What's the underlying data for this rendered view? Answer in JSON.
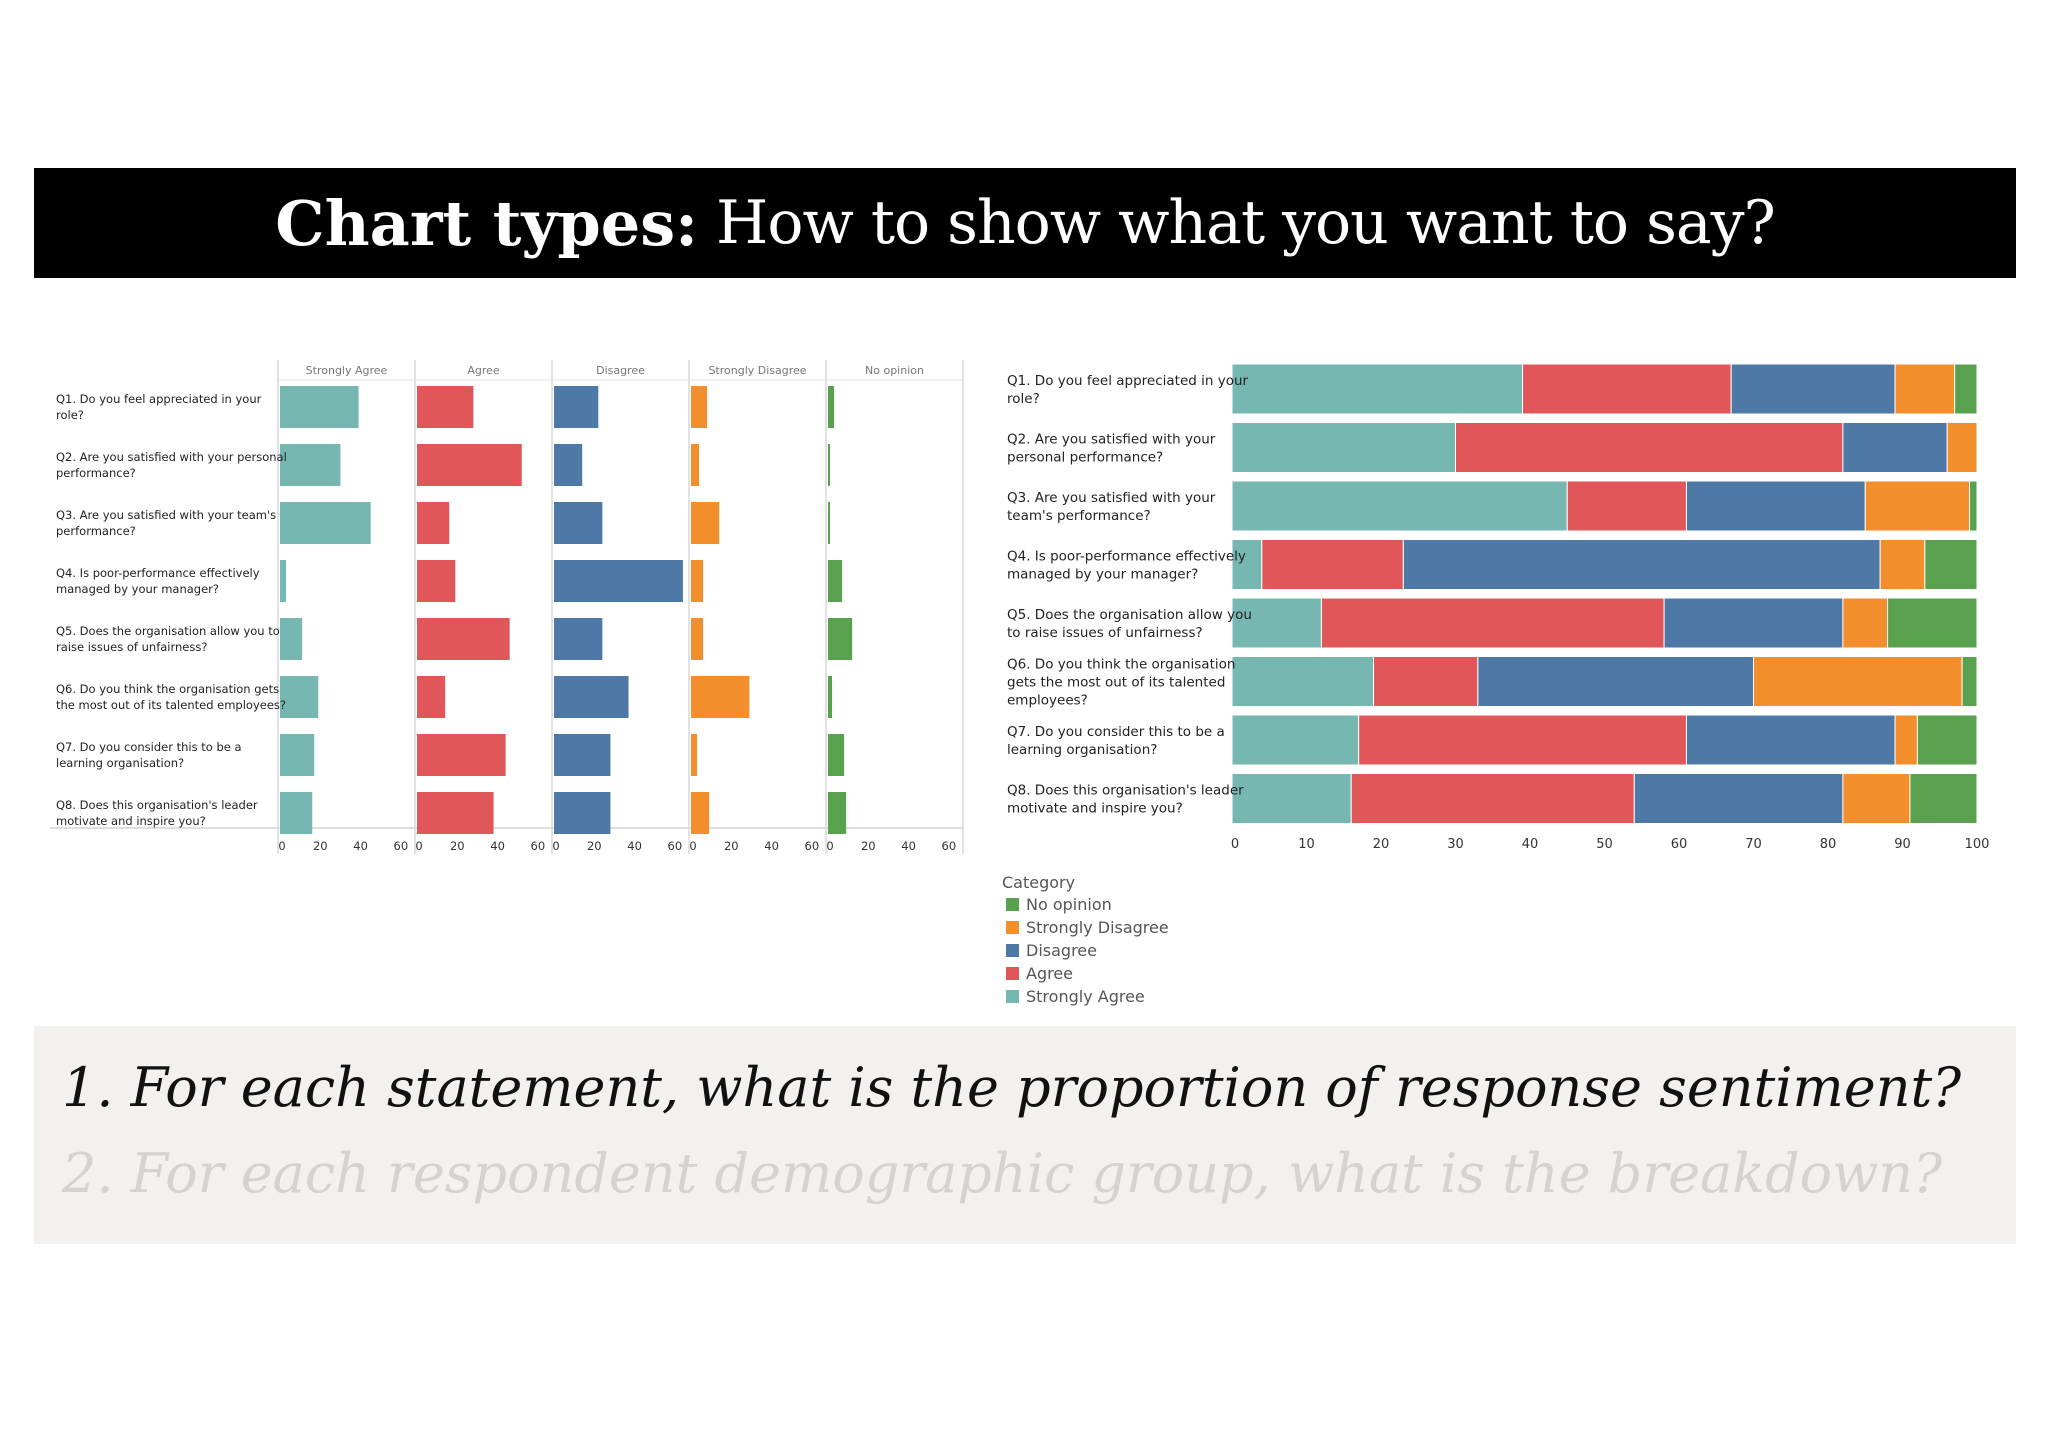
{
  "title": {
    "bold": "Chart types:",
    "regular": "How to show what you want to say?"
  },
  "colors": {
    "Strongly Agree": "#76b7b2",
    "Agree": "#e15759",
    "Disagree": "#4e79a7",
    "Strongly Disagree": "#f28e2b",
    "No opinion": "#59a14f"
  },
  "chart_data": [
    {
      "type": "bar",
      "orientation": "horizontal",
      "layout": "small-multiples",
      "categories": [
        "Q1. Do you feel appreciated in your role?",
        "Q2. Are you satisfied with your personal performance?",
        "Q3. Are you satisfied with your team's performance?",
        "Q4. Is poor-performance effectively managed by your manager?",
        "Q5. Does the organisation allow you to raise issues of unfairness?",
        "Q6. Do you think the organisation gets the most out of its talented employees?",
        "Q7. Do you consider this to be a learning organisation?",
        "Q8. Does this organisation's leader motivate and inspire you?"
      ],
      "series": [
        {
          "name": "Strongly Agree",
          "values": [
            39,
            30,
            45,
            3,
            11,
            19,
            17,
            16
          ]
        },
        {
          "name": "Agree",
          "values": [
            28,
            52,
            16,
            19,
            46,
            14,
            44,
            38
          ]
        },
        {
          "name": "Disagree",
          "values": [
            22,
            14,
            24,
            64,
            24,
            37,
            28,
            28
          ]
        },
        {
          "name": "Strongly Disagree",
          "values": [
            8,
            4,
            14,
            6,
            6,
            29,
            3,
            9
          ]
        },
        {
          "name": "No opinion",
          "values": [
            3,
            1,
            1,
            7,
            12,
            2,
            8,
            9
          ]
        }
      ],
      "xlim": [
        0,
        68
      ],
      "xticks": [
        0,
        20,
        40,
        60
      ],
      "grid": false
    },
    {
      "type": "bar",
      "orientation": "horizontal",
      "stacked": true,
      "categories": [
        "Q1. Do you feel appreciated in your role?",
        "Q2. Are you satisfied with your personal performance?",
        "Q3. Are you satisfied with your team's performance?",
        "Q4. Is poor-performance effectively managed by your manager?",
        "Q5. Does the organisation allow you to raise issues of unfairness?",
        "Q6. Do you think the organisation gets the most out of its talented employees?",
        "Q7. Do you consider this to be a learning organisation?",
        "Q8. Does this organisation's leader motivate and inspire you?"
      ],
      "series": [
        {
          "name": "Strongly Agree",
          "values": [
            39,
            30,
            45,
            4,
            12,
            19,
            17,
            16
          ]
        },
        {
          "name": "Agree",
          "values": [
            28,
            52,
            16,
            19,
            46,
            14,
            44,
            38
          ]
        },
        {
          "name": "Disagree",
          "values": [
            22,
            14,
            24,
            64,
            24,
            37,
            28,
            28
          ]
        },
        {
          "name": "Strongly Disagree",
          "values": [
            8,
            4,
            14,
            6,
            6,
            28,
            3,
            9
          ]
        },
        {
          "name": "No opinion",
          "values": [
            3,
            0,
            1,
            7,
            12,
            2,
            8,
            9
          ]
        }
      ],
      "xlim": [
        0,
        100
      ],
      "xticks": [
        0,
        10,
        20,
        30,
        40,
        50,
        60,
        70,
        80,
        90,
        100
      ],
      "legend": {
        "title": "Category",
        "position": "bottom-left",
        "items": [
          "No opinion",
          "Strongly Disagree",
          "Disagree",
          "Agree",
          "Strongly Agree"
        ]
      },
      "grid": false
    }
  ],
  "questions": {
    "q1": "1. For each statement, what is the proportion of response sentiment?",
    "q2": "2. For each respondent demographic group, what is the breakdown?"
  }
}
